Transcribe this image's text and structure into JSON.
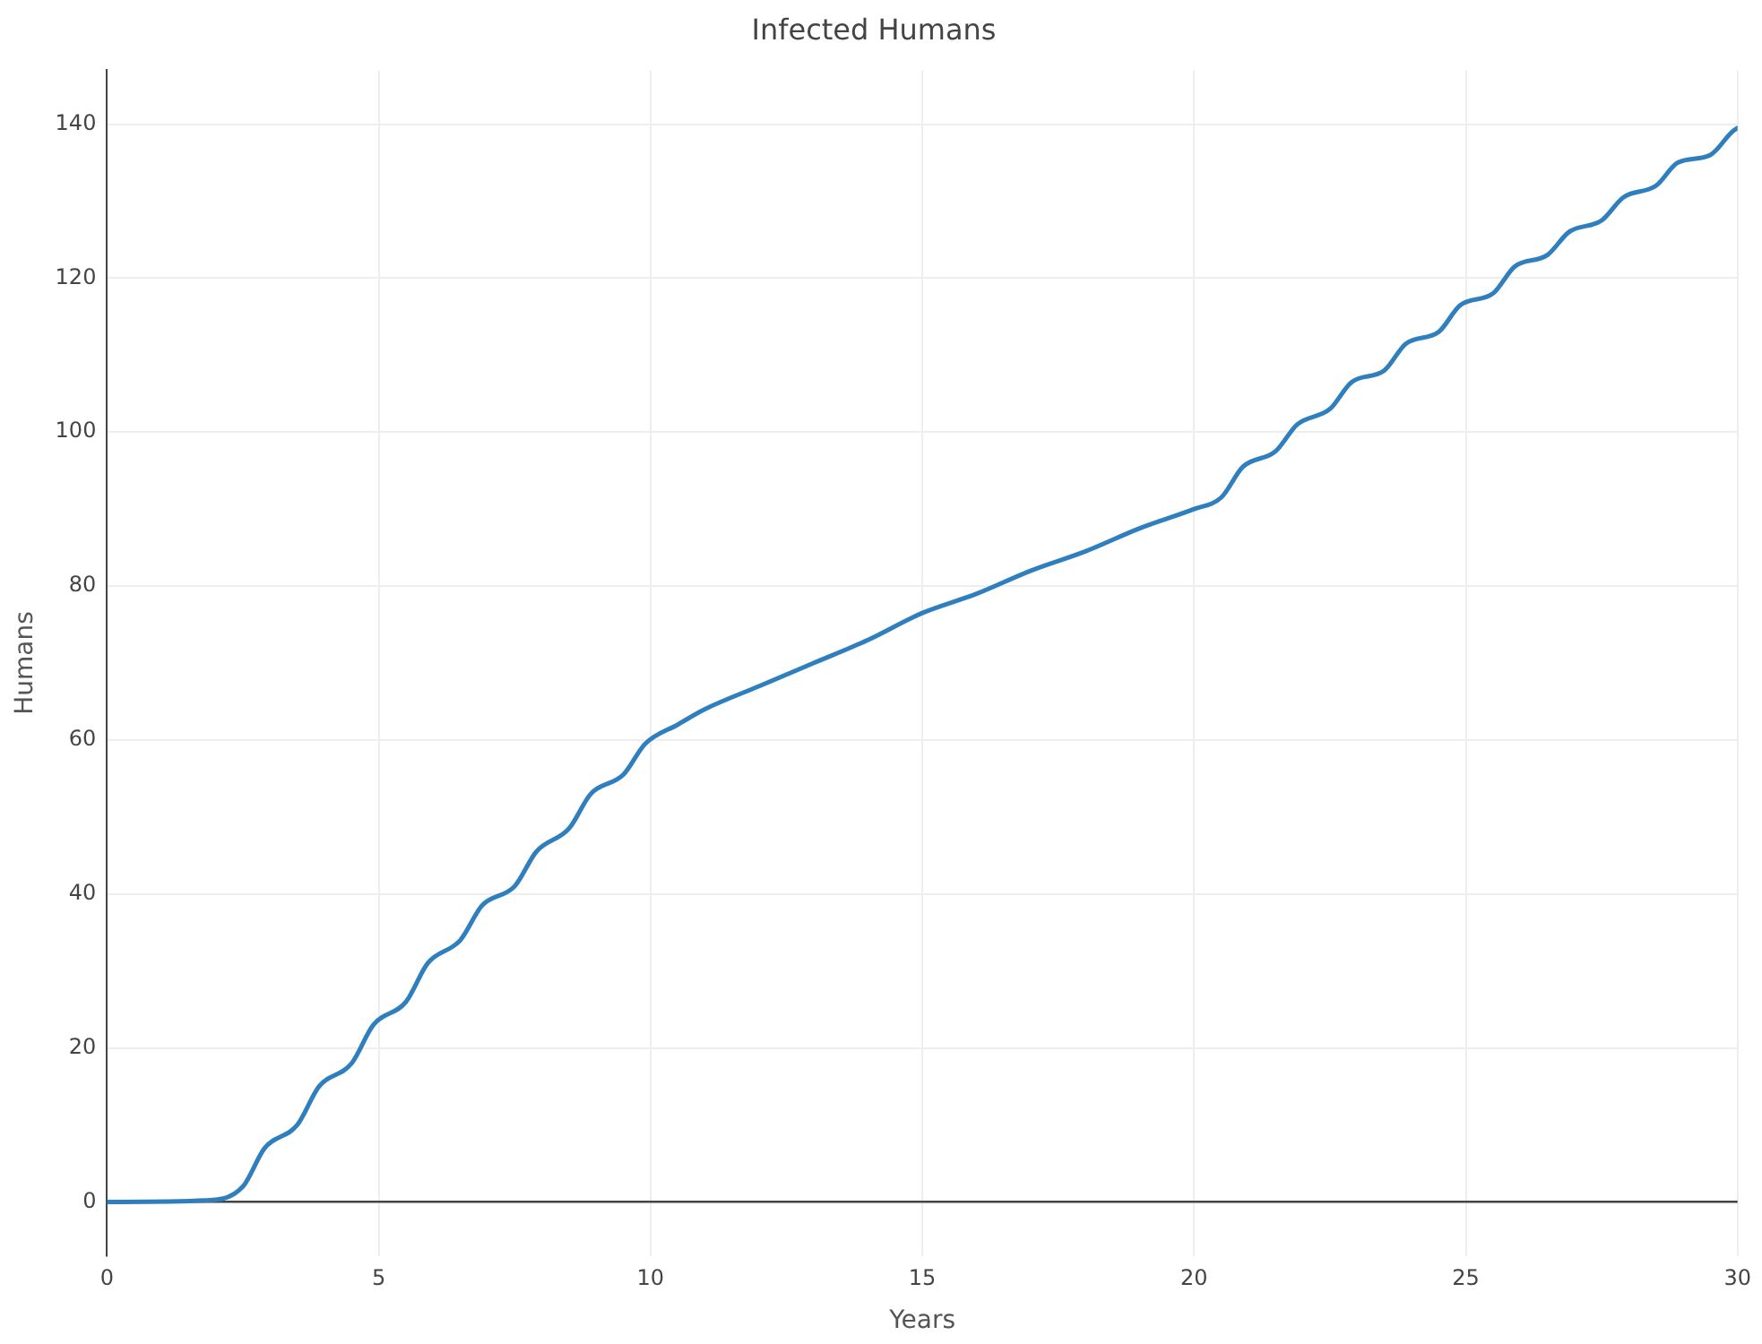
{
  "chart_data": {
    "type": "line",
    "title": "Infected Humans",
    "xlabel": "Years",
    "ylabel": "Humans",
    "x": [
      0,
      1.8,
      2.5,
      2.9,
      3.5,
      3.9,
      4.5,
      4.9,
      5.5,
      5.9,
      6.5,
      6.9,
      7.5,
      7.9,
      8.5,
      8.9,
      9.5,
      9.9,
      10.5,
      11,
      12,
      13,
      14,
      15,
      16,
      17,
      18,
      19,
      20,
      20.5,
      20.9,
      21.5,
      21.9,
      22.5,
      22.9,
      23.5,
      23.9,
      24.5,
      24.9,
      25.5,
      25.9,
      26.5,
      26.9,
      27.5,
      27.9,
      28.5,
      28.9,
      29.5,
      29.9,
      30
    ],
    "series": [
      {
        "color": "#2f7fbf",
        "values": [
          0,
          0.2,
          2,
          7,
          10,
          15,
          18,
          23,
          26,
          31,
          34,
          38.5,
          41,
          45.5,
          48.5,
          53,
          55.5,
          59.5,
          62,
          64,
          67,
          70,
          73,
          76.5,
          79,
          82,
          84.5,
          87.5,
          90,
          91.5,
          95.5,
          97.5,
          101,
          103,
          106.5,
          108,
          111.5,
          113,
          116.5,
          118,
          121.5,
          123,
          126,
          127.5,
          130.5,
          132,
          135,
          136,
          139,
          139.5
        ]
      }
    ],
    "xlim": [
      0,
      30
    ],
    "xticks": [
      0,
      5,
      10,
      15,
      20,
      25,
      30
    ],
    "ylim": [
      -7,
      147
    ],
    "yticks": [
      0,
      20,
      40,
      60,
      80,
      100,
      120,
      140
    ],
    "grid": true,
    "legend": false,
    "marker": "none",
    "line_style": "solid"
  }
}
